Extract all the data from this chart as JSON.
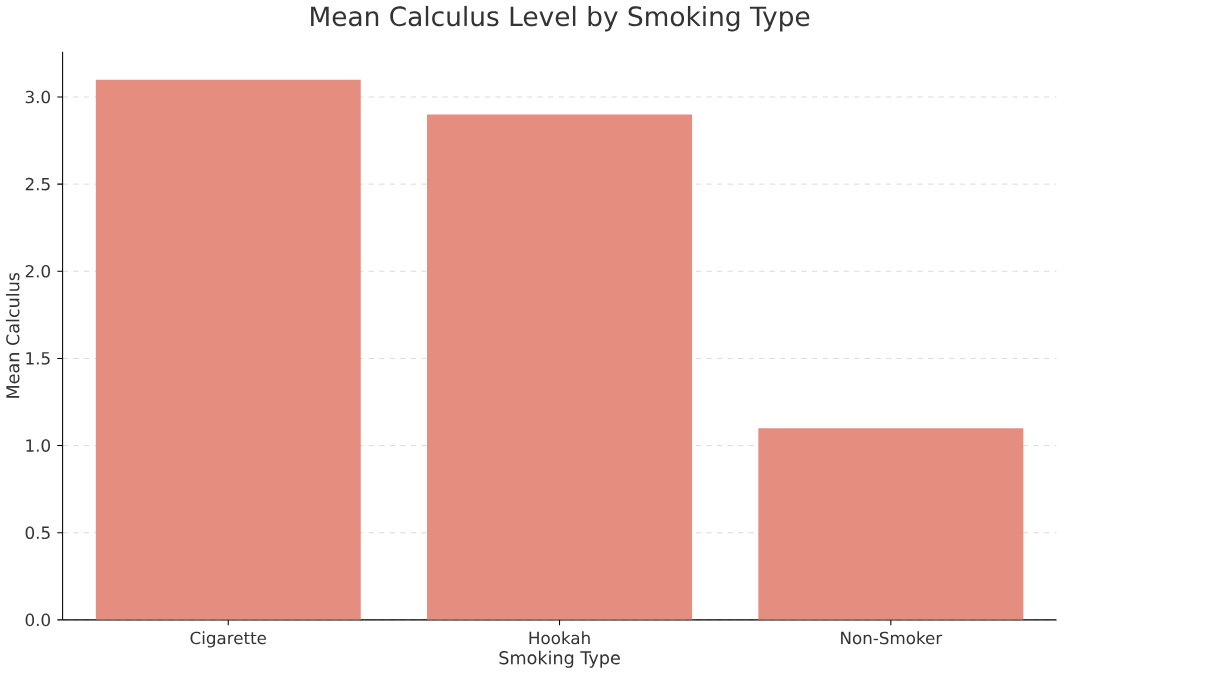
{
  "chart_data": {
    "type": "bar",
    "title": "Mean Calculus Level by Smoking Type",
    "xlabel": "Smoking Type",
    "ylabel": "Mean Calculus",
    "categories": [
      "Cigarette",
      "Hookah",
      "Non-Smoker"
    ],
    "values": [
      3.1,
      2.9,
      1.1
    ],
    "color": "#e58e80",
    "ylim": [
      0,
      3.26
    ],
    "yticks": [
      {
        "value": 0,
        "label": "0.0"
      },
      {
        "value": 0.5,
        "label": "0.5"
      },
      {
        "value": 1,
        "label": "1.0"
      },
      {
        "value": 1.5,
        "label": "1.5"
      },
      {
        "value": 2,
        "label": "2.0"
      },
      {
        "value": 2.5,
        "label": "2.5"
      },
      {
        "value": 3,
        "label": "3.0"
      }
    ],
    "grid": "y"
  }
}
